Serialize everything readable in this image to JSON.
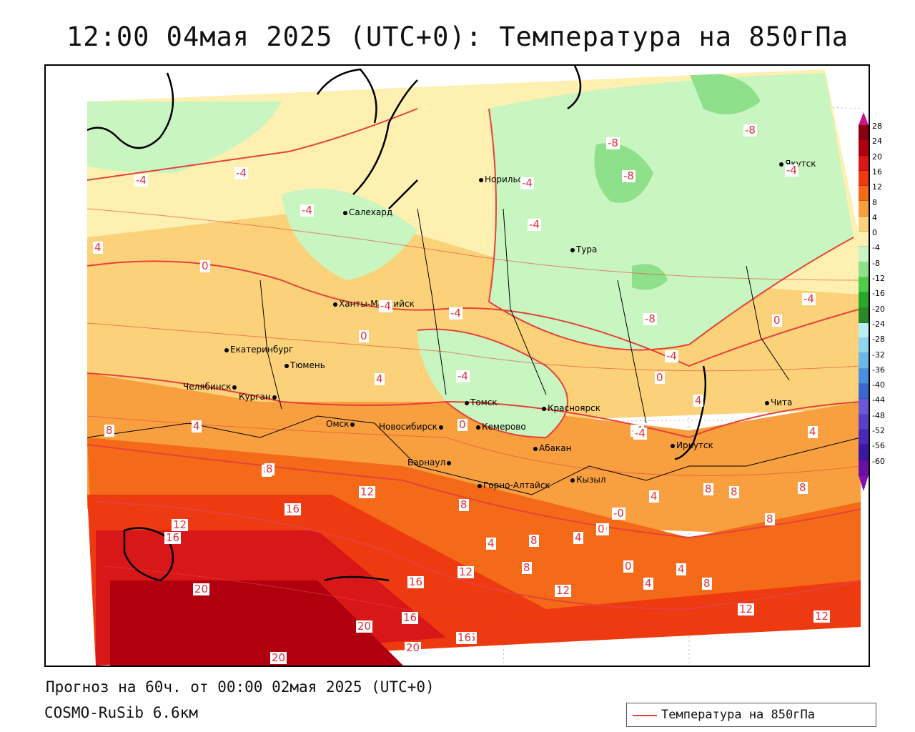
{
  "title": "12:00 04мая 2025 (UTC+0): Температура на 850гПа",
  "footer": {
    "forecast": "Прогноз на 60ч. от 00:00 02мая 2025 (UTC+0)",
    "model": "COSMO-RuSib 6.6км"
  },
  "legend": {
    "label": "Температура на 850гПа",
    "color": "#e8403a"
  },
  "colorbar": {
    "ticks": [
      "28",
      "24",
      "20",
      "16",
      "12",
      "8",
      "4",
      "0",
      "-4",
      "-8",
      "-12",
      "-16",
      "-20",
      "-24",
      "-28",
      "-32",
      "-36",
      "-40",
      "-44",
      "-48",
      "-52",
      "-56",
      "-60"
    ],
    "colors": [
      "#8a0010",
      "#b00010",
      "#d81818",
      "#ee3a10",
      "#f46a18",
      "#f8a040",
      "#fbd27a",
      "#fdf0b0",
      "#c8f5c0",
      "#8fe08a",
      "#4fcc4c",
      "#28a828",
      "#2a8a2a",
      "#b8f0f8",
      "#8fd6f0",
      "#6ab8e8",
      "#4a8ee0",
      "#3a68d0",
      "#6a58d8",
      "#5a40c8",
      "#4a28b8",
      "#3a18a0",
      "#6a10a0"
    ],
    "top_arrow_color": "#d0108a",
    "bottom_arrow_color": "#8010b0"
  },
  "cities": [
    {
      "name": "Норильск"
    },
    {
      "name": "Якутск"
    },
    {
      "name": "Салехард"
    },
    {
      "name": "Тура"
    },
    {
      "name": "Ханты-Мансийск"
    },
    {
      "name": "Екатеринбург"
    },
    {
      "name": "Тюмень"
    },
    {
      "name": "Челябинск"
    },
    {
      "name": "Курган"
    },
    {
      "name": "Омск"
    },
    {
      "name": "Новосибирск"
    },
    {
      "name": "Томск"
    },
    {
      "name": "Кемерово"
    },
    {
      "name": "Красноярск"
    },
    {
      "name": "Барнаул"
    },
    {
      "name": "Абакан"
    },
    {
      "name": "Иркутск"
    },
    {
      "name": "Чита"
    },
    {
      "name": "Кызыл"
    },
    {
      "name": "Горно-Алтайск"
    }
  ],
  "contour_labels": [
    "-4",
    "-4",
    "-4",
    "-8",
    "-8",
    "-8",
    "-4",
    "-4",
    "-4",
    "-4",
    "-4",
    "-8",
    "4",
    "0",
    "0",
    "-4",
    "0",
    "-4",
    "-4",
    "0",
    "4",
    "4",
    "-4",
    "4",
    "0",
    "4",
    "8",
    "4",
    "0",
    "8",
    "12",
    "8",
    "8",
    "16",
    "12",
    "16",
    "8",
    "4",
    "8",
    "4",
    "0",
    "4",
    "-0",
    "0",
    "4",
    "8",
    "8",
    "8",
    "12",
    "12",
    "12",
    "16",
    "20",
    "16",
    "20",
    "20",
    "16",
    "20",
    "-4",
    "8",
    "8",
    "12",
    "16"
  ]
}
